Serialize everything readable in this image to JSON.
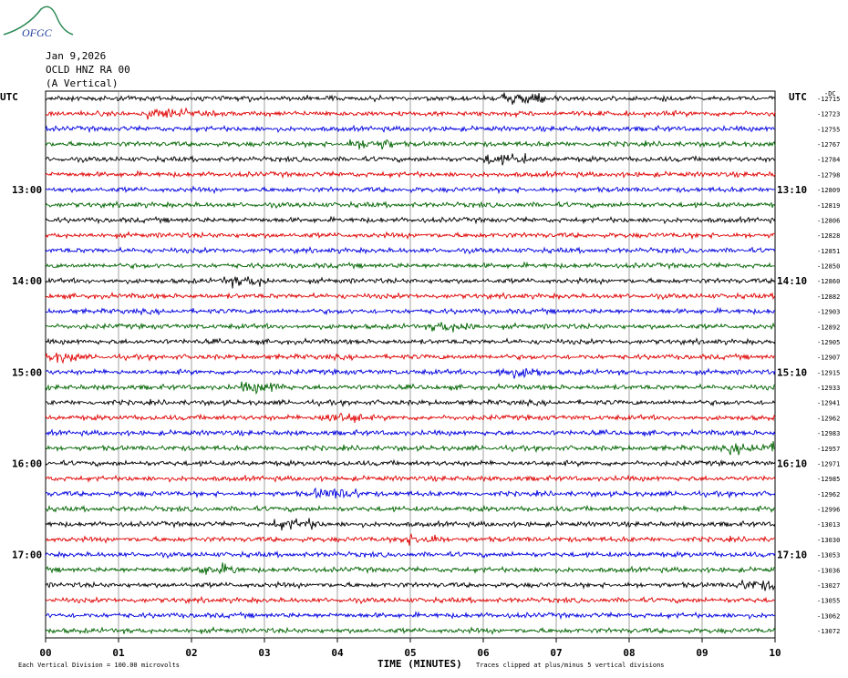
{
  "logo": "OFGC",
  "header": {
    "lines": [
      "Jan 9,2026",
      "OCLD HNZ RA 00",
      "(A Vertical)"
    ]
  },
  "left_labels": {
    "unit": "UTC",
    "hours": [
      {
        "row": 6,
        "label": "13:00"
      },
      {
        "row": 12,
        "label": "14:00"
      },
      {
        "row": 18,
        "label": "15:00"
      },
      {
        "row": 24,
        "label": "16:00"
      },
      {
        "row": 30,
        "label": "17:00"
      }
    ]
  },
  "right_labels": {
    "unit": "UTC",
    "dc": "-DC",
    "hours": [
      {
        "row": 6,
        "label": "13:10"
      },
      {
        "row": 12,
        "label": "14:10"
      },
      {
        "row": 18,
        "label": "15:10"
      },
      {
        "row": 24,
        "label": "16:10"
      },
      {
        "row": 30,
        "label": "17:10"
      }
    ]
  },
  "offsets": [
    "-12715",
    "-12723",
    "-12755",
    "-12767",
    "-12784",
    "-12798",
    "-12809",
    "-12819",
    "-12806",
    "-12828",
    "-12851",
    "-12850",
    "-12860",
    "-12882",
    "-12903",
    "-12892",
    "-12905",
    "-12907",
    "-12915",
    "-12933",
    "-12941",
    "-12962",
    "-12983",
    "-12957",
    "-12971",
    "-12985",
    "-12962",
    "-12996",
    "-13013",
    "-13030",
    "-13053",
    "-13036",
    "-13027",
    "-13055",
    "-13062",
    "-13072"
  ],
  "trace_colors": [
    "#000000",
    "#e00000",
    "#0000e0",
    "#006400"
  ],
  "x_axis": {
    "ticks": [
      "00",
      "01",
      "02",
      "03",
      "04",
      "05",
      "06",
      "07",
      "08",
      "09",
      "10"
    ],
    "title": "TIME (MINUTES)"
  },
  "footer": {
    "scale": "Each Vertical Division =  100.00 microvolts",
    "clip": "Traces clipped at plus/minus 5 vertical divisions"
  }
}
